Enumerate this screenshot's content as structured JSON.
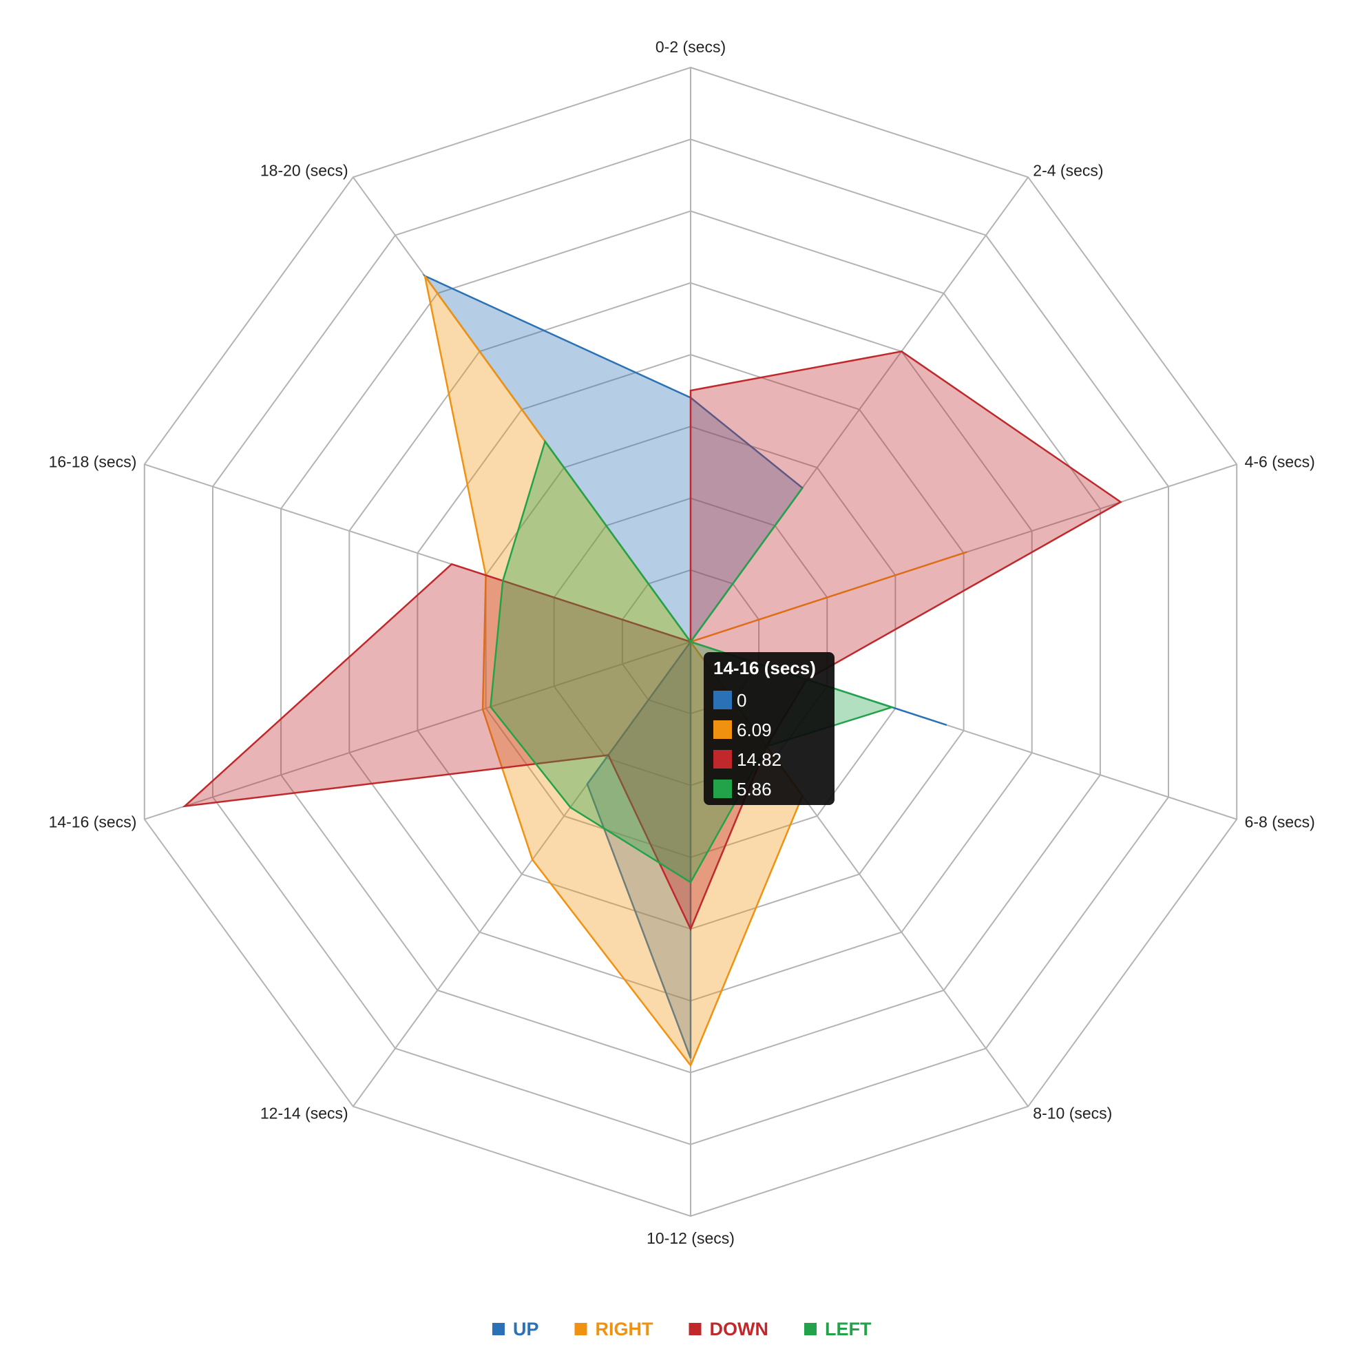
{
  "chart_data": {
    "type": "radar",
    "categories": [
      "0-2 (secs)",
      "2-4 (secs)",
      "4-6 (secs)",
      "6-8 (secs)",
      "8-10 (secs)",
      "10-12 (secs)",
      "12-14 (secs)",
      "14-16 (secs)",
      "16-18 (secs)",
      "18-20 (secs)"
    ],
    "r_max": 16,
    "rings": 8,
    "grid": true,
    "legend_position": "bottom-center",
    "series": [
      {
        "name": "UP",
        "color": "#2a72b5",
        "values": [
          6.8,
          5.3,
          0,
          7.5,
          0,
          11.6,
          4.9,
          0,
          0,
          12.6
        ]
      },
      {
        "name": "RIGHT",
        "color": "#f0920f",
        "values": [
          0,
          0,
          8.1,
          0,
          5.3,
          11.8,
          7.5,
          6.09,
          6.0,
          12.6
        ]
      },
      {
        "name": "DOWN",
        "color": "#c0282b",
        "values": [
          7.0,
          10.0,
          12.6,
          3.4,
          3.6,
          8.0,
          3.9,
          14.82,
          7.0,
          0
        ]
      },
      {
        "name": "LEFT",
        "color": "#22a34a",
        "values": [
          0,
          5.3,
          0,
          5.9,
          3.6,
          6.7,
          5.7,
          5.86,
          5.5,
          6.9
        ]
      }
    ]
  },
  "legend": {
    "items": [
      {
        "label": "UP",
        "color": "#2a72b5"
      },
      {
        "label": "RIGHT",
        "color": "#f0920f"
      },
      {
        "label": "DOWN",
        "color": "#c0282b"
      },
      {
        "label": "LEFT",
        "color": "#22a34a"
      }
    ]
  },
  "tooltip": {
    "title": "14-16 (secs)",
    "rows": [
      {
        "color": "#2a72b5",
        "value": "0"
      },
      {
        "color": "#f0920f",
        "value": "6.09"
      },
      {
        "color": "#c0282b",
        "value": "14.82"
      },
      {
        "color": "#22a34a",
        "value": "5.86"
      }
    ]
  }
}
